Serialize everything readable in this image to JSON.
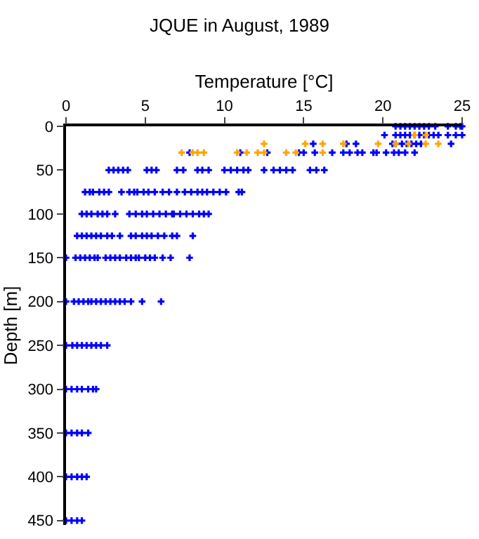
{
  "chart_data": {
    "type": "scatter",
    "title": "JQUE in August, 1989",
    "xlabel": "Temperature [°C]",
    "ylabel": "Depth [m]",
    "xlim": [
      0,
      25
    ],
    "xticks": [
      0,
      5,
      10,
      15,
      20,
      25
    ],
    "ylim": [
      455,
      0
    ],
    "yticks": [
      0,
      50,
      100,
      150,
      200,
      250,
      300,
      350,
      400,
      450
    ],
    "marker": "cross",
    "series": [
      {
        "color": "#0000ff",
        "x": [
          20.8,
          21.1,
          21.4,
          21.7,
          22.0,
          22.3,
          22.6,
          22.9,
          23.3,
          24.1,
          24.6,
          24.9,
          25.0,
          20.1,
          20.8,
          21.1,
          21.4,
          21.7,
          22.0,
          22.3,
          22.6,
          22.9,
          23.2,
          23.5,
          24.1,
          24.6,
          25.0,
          15.6,
          17.7,
          18.3,
          20.6,
          20.8,
          21.2,
          21.5,
          21.8,
          22.1,
          22.4,
          24.3,
          7.8,
          11.0,
          12.7,
          14.7,
          15.0,
          15.7,
          16.8,
          17.5,
          17.9,
          18.4,
          18.7,
          19.4,
          19.6,
          20.2,
          20.7,
          21.0,
          21.4,
          22.0,
          2.7,
          3.0,
          3.3,
          3.6,
          3.9,
          5.1,
          5.4,
          5.7,
          7.0,
          7.4,
          8.3,
          8.6,
          9.0,
          10.0,
          10.4,
          10.8,
          11.2,
          11.5,
          12.5,
          13.1,
          13.5,
          13.9,
          14.3,
          15.4,
          15.8,
          16.3,
          1.2,
          1.5,
          1.7,
          2.1,
          2.4,
          2.7,
          3.5,
          4.0,
          4.3,
          4.5,
          4.9,
          5.2,
          5.6,
          6.1,
          6.5,
          7.0,
          7.5,
          7.9,
          8.3,
          8.6,
          8.9,
          9.3,
          9.7,
          10.1,
          10.9,
          11.1,
          1.0,
          1.3,
          1.6,
          2.0,
          2.3,
          2.6,
          3.1,
          4.0,
          4.4,
          4.8,
          5.1,
          5.5,
          5.9,
          6.3,
          6.7,
          6.8,
          7.2,
          7.6,
          8.0,
          8.4,
          8.7,
          9.0,
          0.7,
          1.0,
          1.3,
          1.6,
          1.9,
          2.2,
          2.6,
          2.9,
          3.4,
          4.1,
          4.4,
          4.8,
          5.1,
          5.4,
          5.8,
          6.2,
          6.7,
          7.0,
          8.0,
          0,
          0.6,
          0.9,
          1.2,
          1.5,
          1.8,
          2.0,
          2.5,
          2.8,
          3.1,
          3.4,
          3.8,
          4.1,
          4.4,
          4.6,
          5.0,
          5.3,
          5.6,
          6.1,
          6.6,
          7.8,
          0,
          0.5,
          0.8,
          1.1,
          1.4,
          1.6,
          1.9,
          2.2,
          2.5,
          2.8,
          3.1,
          3.4,
          3.7,
          4.1,
          4.8,
          6.0,
          0,
          0.4,
          0.7,
          1.0,
          1.3,
          1.6,
          1.9,
          2.2,
          2.6,
          0,
          0.35,
          0.7,
          1.0,
          1.4,
          1.7,
          1.9,
          0,
          0.35,
          0.7,
          1.0,
          1.4,
          0,
          0.35,
          0.7,
          1.0,
          1.3,
          0,
          0.35,
          0.7,
          1.0
        ],
        "values": [
          0,
          0,
          0,
          0,
          0,
          0,
          0,
          0,
          0,
          0,
          0,
          0,
          0,
          10,
          10,
          10,
          10,
          10,
          10,
          10,
          10,
          10,
          10,
          10,
          10,
          10,
          10,
          20,
          20,
          20,
          20,
          20,
          20,
          20,
          20,
          20,
          20,
          20,
          30,
          30,
          30,
          30,
          30,
          30,
          30,
          30,
          30,
          30,
          30,
          30,
          30,
          30,
          30,
          30,
          30,
          30,
          50,
          50,
          50,
          50,
          50,
          50,
          50,
          50,
          50,
          50,
          50,
          50,
          50,
          50,
          50,
          50,
          50,
          50,
          50,
          50,
          50,
          50,
          50,
          50,
          50,
          50,
          75,
          75,
          75,
          75,
          75,
          75,
          75,
          75,
          75,
          75,
          75,
          75,
          75,
          75,
          75,
          75,
          75,
          75,
          75,
          75,
          75,
          75,
          75,
          75,
          75,
          75,
          100,
          100,
          100,
          100,
          100,
          100,
          100,
          100,
          100,
          100,
          100,
          100,
          100,
          100,
          100,
          100,
          100,
          100,
          100,
          100,
          100,
          100,
          125,
          125,
          125,
          125,
          125,
          125,
          125,
          125,
          125,
          125,
          125,
          125,
          125,
          125,
          125,
          125,
          125,
          125,
          125,
          150,
          150,
          150,
          150,
          150,
          150,
          150,
          150,
          150,
          150,
          150,
          150,
          150,
          150,
          150,
          150,
          150,
          150,
          150,
          150,
          150,
          200,
          200,
          200,
          200,
          200,
          200,
          200,
          200,
          200,
          200,
          200,
          200,
          200,
          200,
          200,
          200,
          250,
          250,
          250,
          250,
          250,
          250,
          250,
          250,
          250,
          300,
          300,
          300,
          300,
          300,
          300,
          300,
          350,
          350,
          350,
          350,
          350,
          400,
          400,
          400,
          400,
          400,
          450,
          450,
          450,
          450
        ]
      },
      {
        "color": "#ffa500",
        "x": [
          22.0,
          22.7,
          12.5,
          15.1,
          16.2,
          17.5,
          19.7,
          20.8,
          21.6,
          22.7,
          23.5,
          7.3,
          8.0,
          8.3,
          8.7,
          10.8,
          11.4,
          12.1,
          12.5,
          13.9,
          14.5,
          16.2
        ],
        "values": [
          10,
          10,
          20,
          20,
          20,
          20,
          20,
          20,
          20,
          20,
          20,
          30,
          30,
          30,
          30,
          30,
          30,
          30,
          30,
          30,
          30,
          30
        ]
      }
    ]
  }
}
